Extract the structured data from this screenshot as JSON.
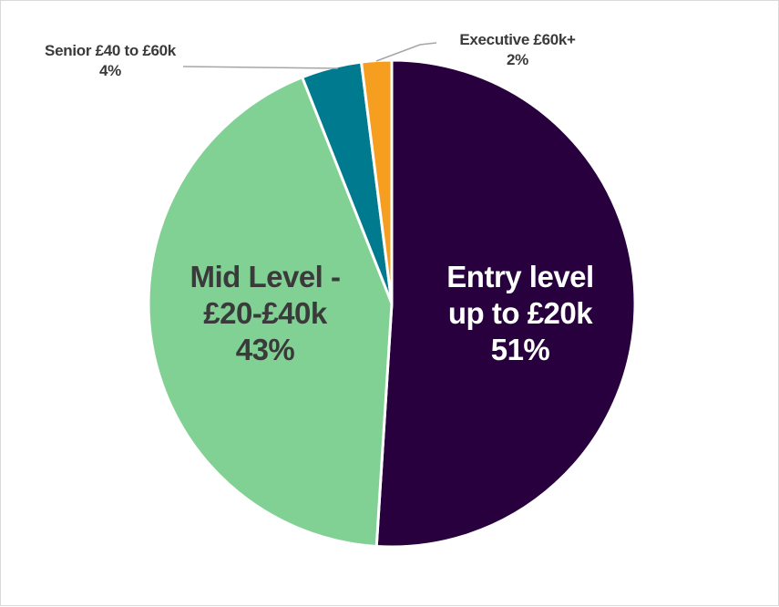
{
  "chart_data": {
    "type": "pie",
    "title": "",
    "slices": [
      {
        "key": "entry",
        "value": 51,
        "color": "#27003d",
        "text_color": "#ffffff",
        "label_lines": [
          "Entry level",
          "up to £20k",
          "51%"
        ]
      },
      {
        "key": "mid",
        "value": 43,
        "color": "#82d194",
        "text_color": "#3a3a3a",
        "label_lines": [
          "Mid Level  -",
          "£20-£40k",
          "43%"
        ]
      },
      {
        "key": "senior",
        "value": 4,
        "color": "#007a8f",
        "text_color": "#3a3a3a",
        "label_lines": [
          "Senior £40 to £60k",
          "4%"
        ]
      },
      {
        "key": "executive",
        "value": 2,
        "color": "#f59e1f",
        "text_color": "#3a3a3a",
        "label_lines": [
          "Executive £60k+",
          "2%"
        ]
      }
    ],
    "start_angle": "12 o'clock",
    "direction": "clockwise",
    "legend": "none"
  }
}
